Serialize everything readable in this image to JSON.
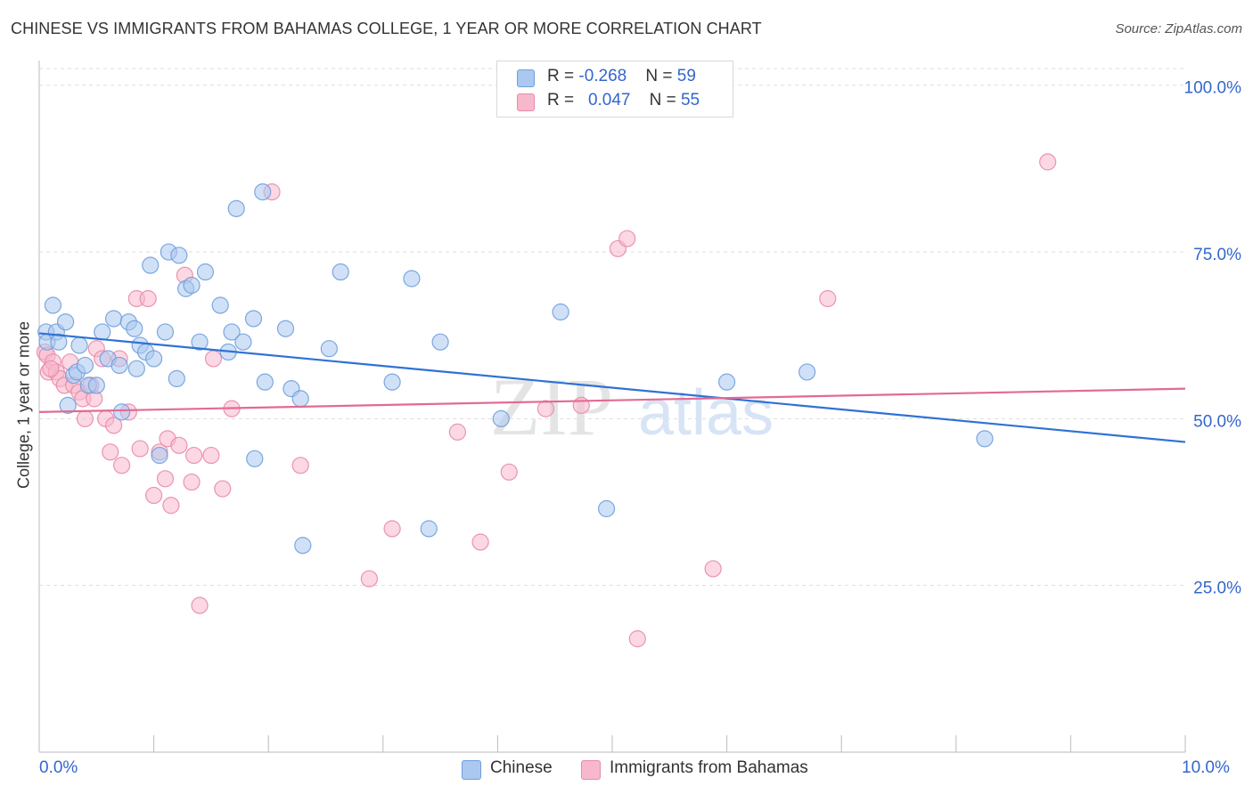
{
  "title": "CHINESE VS IMMIGRANTS FROM BAHAMAS COLLEGE, 1 YEAR OR MORE CORRELATION CHART",
  "source": "Source: ZipAtlas.com",
  "watermark": {
    "zip": "ZIP",
    "atlas": "atlas"
  },
  "legend": {
    "chinese": {
      "r_label": "R = ",
      "r_value": "-0.268",
      "n_label": "N = ",
      "n_value": "59"
    },
    "bahamas": {
      "r_label": "R = ",
      "r_value": "0.047",
      "n_label": "N = ",
      "n_value": "55"
    }
  },
  "colors": {
    "chinese_fill": "#aac8f0",
    "chinese_stroke": "#6f9fdb",
    "chinese_line": "#2f72d4",
    "bahamas_fill": "#f7b8cc",
    "bahamas_stroke": "#e98aa8",
    "bahamas_line": "#e26a94",
    "grid": "#dddddd",
    "tick_label": "#3366cc"
  },
  "chart_data": {
    "type": "scatter",
    "title": "CHINESE VS IMMIGRANTS FROM BAHAMAS COLLEGE, 1 YEAR OR MORE CORRELATION CHART",
    "xlabel": "",
    "ylabel": "College, 1 year or more",
    "xlim": [
      0,
      10
    ],
    "ylim": [
      0,
      102.5
    ],
    "x_tick_labels": [
      "0.0%",
      "10.0%"
    ],
    "y_ticks": [
      25,
      50,
      75,
      100
    ],
    "y_tick_labels": [
      "25.0%",
      "50.0%",
      "75.0%",
      "100.0%"
    ],
    "grid": true,
    "legend_position": "top-center",
    "series": [
      {
        "name": "Chinese",
        "trend": {
          "x": [
            0,
            10
          ],
          "y": [
            62.8,
            46.5
          ]
        },
        "points": [
          [
            0.06,
            63.0
          ],
          [
            0.07,
            61.5
          ],
          [
            0.12,
            67.0
          ],
          [
            0.15,
            63.0
          ],
          [
            0.17,
            61.5
          ],
          [
            0.23,
            64.5
          ],
          [
            0.25,
            52.0
          ],
          [
            0.3,
            56.5
          ],
          [
            0.33,
            57.0
          ],
          [
            0.35,
            61.0
          ],
          [
            0.4,
            58.0
          ],
          [
            0.43,
            55.0
          ],
          [
            0.5,
            55.0
          ],
          [
            0.55,
            63.0
          ],
          [
            0.6,
            59.0
          ],
          [
            0.65,
            65.0
          ],
          [
            0.7,
            58.0
          ],
          [
            0.72,
            51.0
          ],
          [
            0.78,
            64.5
          ],
          [
            0.83,
            63.5
          ],
          [
            0.85,
            57.5
          ],
          [
            0.88,
            61.0
          ],
          [
            0.93,
            60.0
          ],
          [
            0.97,
            73.0
          ],
          [
            1.0,
            59.0
          ],
          [
            1.05,
            44.5
          ],
          [
            1.1,
            63.0
          ],
          [
            1.13,
            75.0
          ],
          [
            1.2,
            56.0
          ],
          [
            1.22,
            74.5
          ],
          [
            1.28,
            69.5
          ],
          [
            1.33,
            70.0
          ],
          [
            1.4,
            61.5
          ],
          [
            1.45,
            72.0
          ],
          [
            1.58,
            67.0
          ],
          [
            1.65,
            60.0
          ],
          [
            1.68,
            63.0
          ],
          [
            1.72,
            81.5
          ],
          [
            1.78,
            61.5
          ],
          [
            1.87,
            65.0
          ],
          [
            1.88,
            44.0
          ],
          [
            1.95,
            84.0
          ],
          [
            1.97,
            55.5
          ],
          [
            2.15,
            63.5
          ],
          [
            2.2,
            54.5
          ],
          [
            2.28,
            53.0
          ],
          [
            2.3,
            31.0
          ],
          [
            2.53,
            60.5
          ],
          [
            2.63,
            72.0
          ],
          [
            3.08,
            55.5
          ],
          [
            3.25,
            71.0
          ],
          [
            3.4,
            33.5
          ],
          [
            3.5,
            61.5
          ],
          [
            4.03,
            50.0
          ],
          [
            4.55,
            66.0
          ],
          [
            4.95,
            36.5
          ],
          [
            6.0,
            55.5
          ],
          [
            6.7,
            57.0
          ],
          [
            8.25,
            47.0
          ]
        ]
      },
      {
        "name": "Immigrants from Bahamas",
        "trend": {
          "x": [
            0,
            10
          ],
          "y": [
            51.0,
            54.5
          ]
        },
        "points": [
          [
            0.05,
            60.0
          ],
          [
            0.07,
            59.5
          ],
          [
            0.08,
            57.0
          ],
          [
            0.12,
            58.5
          ],
          [
            0.15,
            57.0
          ],
          [
            0.18,
            56.0
          ],
          [
            0.22,
            55.0
          ],
          [
            0.27,
            58.5
          ],
          [
            0.3,
            55.0
          ],
          [
            0.35,
            54.0
          ],
          [
            0.38,
            53.0
          ],
          [
            0.4,
            50.0
          ],
          [
            0.45,
            55.0
          ],
          [
            0.48,
            53.0
          ],
          [
            0.5,
            60.5
          ],
          [
            0.55,
            59.0
          ],
          [
            0.58,
            50.0
          ],
          [
            0.62,
            45.0
          ],
          [
            0.65,
            49.0
          ],
          [
            0.7,
            59.0
          ],
          [
            0.72,
            43.0
          ],
          [
            0.78,
            51.0
          ],
          [
            0.85,
            68.0
          ],
          [
            0.88,
            45.5
          ],
          [
            0.95,
            68.0
          ],
          [
            1.0,
            38.5
          ],
          [
            1.05,
            45.0
          ],
          [
            1.1,
            41.0
          ],
          [
            1.12,
            47.0
          ],
          [
            1.15,
            37.0
          ],
          [
            1.22,
            46.0
          ],
          [
            1.27,
            71.5
          ],
          [
            1.33,
            40.5
          ],
          [
            1.35,
            44.5
          ],
          [
            1.4,
            22.0
          ],
          [
            1.5,
            44.5
          ],
          [
            1.52,
            59.0
          ],
          [
            1.6,
            39.5
          ],
          [
            1.68,
            51.5
          ],
          [
            2.03,
            84.0
          ],
          [
            2.28,
            43.0
          ],
          [
            2.88,
            26.0
          ],
          [
            3.08,
            33.5
          ],
          [
            3.65,
            48.0
          ],
          [
            3.85,
            31.5
          ],
          [
            4.1,
            42.0
          ],
          [
            4.42,
            51.5
          ],
          [
            4.73,
            52.0
          ],
          [
            5.05,
            75.5
          ],
          [
            5.13,
            77.0
          ],
          [
            5.22,
            17.0
          ],
          [
            5.88,
            27.5
          ],
          [
            6.88,
            68.0
          ],
          [
            8.8,
            88.5
          ],
          [
            0.1,
            57.5
          ]
        ]
      }
    ]
  },
  "bottom_legend": [
    "Chinese",
    "Immigrants from Bahamas"
  ]
}
